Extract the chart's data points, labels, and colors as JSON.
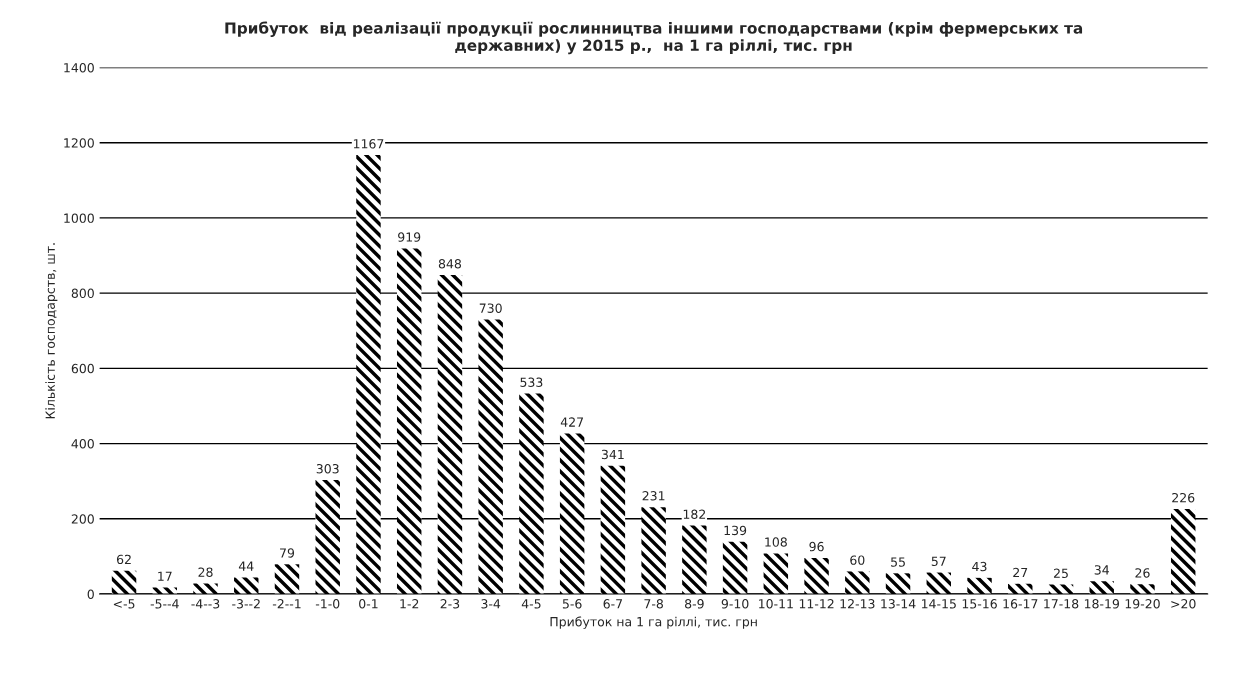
{
  "chart_data": {
    "type": "bar",
    "title": "Прибуток  від реалізації продукції рослинництва іншими господарствами (крім фермерських та\nдержавних) у 2015 р.,  на 1 га ріллі, тис. грн",
    "xlabel": "Прибуток на 1 га ріллі, тис. грн",
    "ylabel": "Кількість господарств, шт.",
    "categories": [
      "<-5",
      "-5--4",
      "-4--3",
      "-3--2",
      "-2--1",
      "-1-0",
      "0-1",
      "1-2",
      "2-3",
      "3-4",
      "4-5",
      "5-6",
      "6-7",
      "7-8",
      "8-9",
      "9-10",
      "10-11",
      "11-12",
      "12-13",
      "13-14",
      "14-15",
      "15-16",
      "16-17",
      "17-18",
      "18-19",
      "19-20",
      ">20"
    ],
    "values": [
      62,
      17,
      28,
      44,
      79,
      303,
      1167,
      919,
      848,
      730,
      533,
      427,
      341,
      231,
      182,
      139,
      108,
      96,
      60,
      55,
      57,
      43,
      27,
      25,
      34,
      26,
      226
    ],
    "color": "#000000",
    "ylim": [
      0,
      1400
    ],
    "yticks": [
      0,
      200,
      400,
      600,
      800,
      1000,
      1200,
      1400
    ],
    "grid": "y",
    "data_labels": true,
    "legend": false
  }
}
